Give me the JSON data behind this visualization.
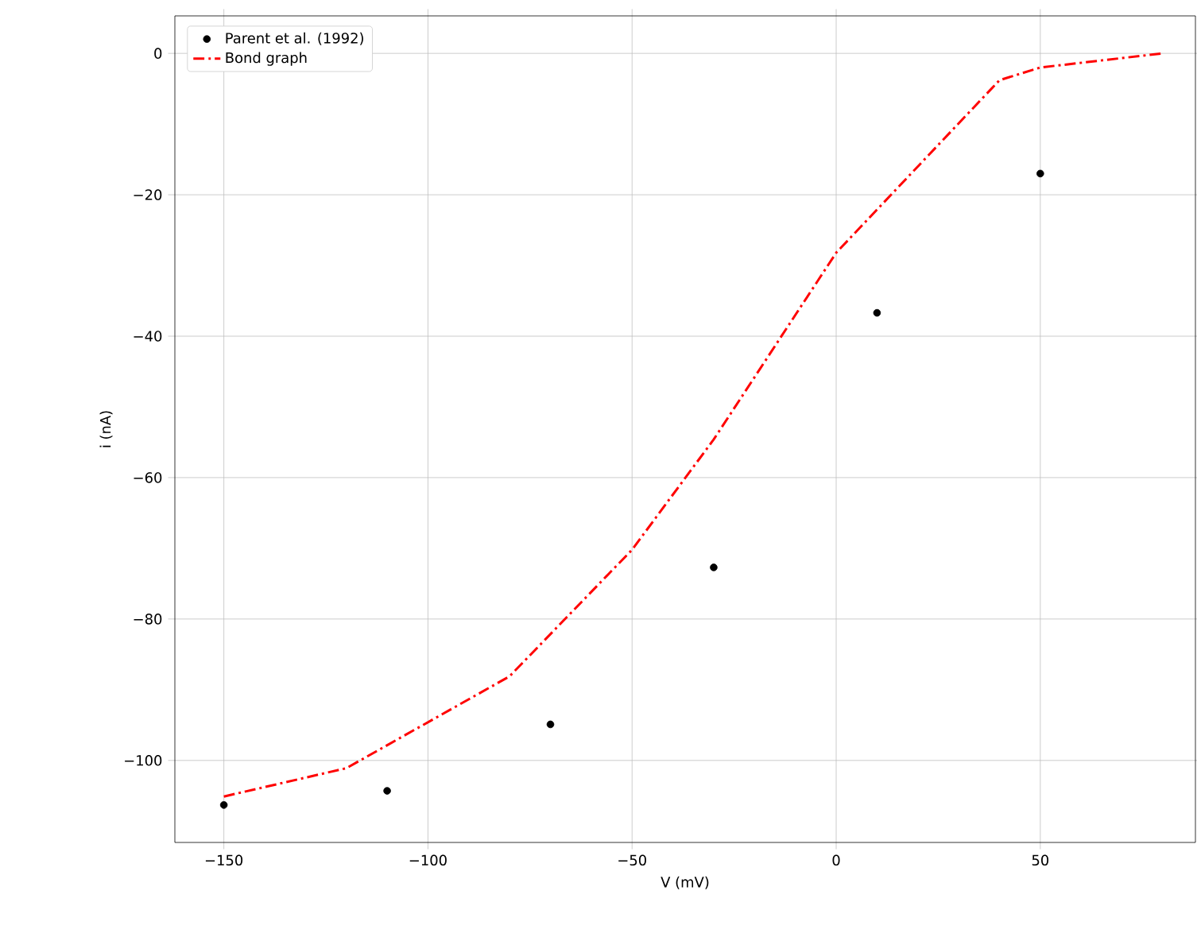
{
  "chart_data": {
    "type": "scatter",
    "xlabel": "V (mV)",
    "ylabel": "i (nA)",
    "xlim": [
      -162,
      88
    ],
    "ylim": [
      -111.6,
      5.3
    ],
    "xticks": [
      {
        "value": -150,
        "label": "−150"
      },
      {
        "value": -100,
        "label": "−100"
      },
      {
        "value": -50,
        "label": "−50"
      },
      0,
      50
    ],
    "yticks": [
      0,
      {
        "value": -20,
        "label": "−20"
      },
      {
        "value": -40,
        "label": "−40"
      },
      {
        "value": -60,
        "label": "−60"
      },
      {
        "value": -80,
        "label": "−80"
      },
      {
        "value": -100,
        "label": "−100"
      }
    ],
    "grid": true,
    "legend": "top left",
    "series": [
      {
        "name": "Parent et al. (1992)",
        "color": "#000000",
        "x": [
          -150,
          -110,
          -70,
          -30,
          10,
          50
        ],
        "values": [
          -106.3,
          -104.3,
          -94.9,
          -72.7,
          -36.7,
          -17.0
        ]
      },
      {
        "name": "Bond graph",
        "type": "line",
        "line_style": "dashdot",
        "color": "#ff0000",
        "x": [
          -150,
          -120,
          -80,
          -50,
          -30,
          0,
          10,
          40,
          50,
          80
        ],
        "values": [
          -105.1,
          -101.1,
          -88.1,
          -70.2,
          -54.6,
          -28.2,
          -22.1,
          -3.8,
          -2.0,
          0
        ]
      }
    ]
  }
}
